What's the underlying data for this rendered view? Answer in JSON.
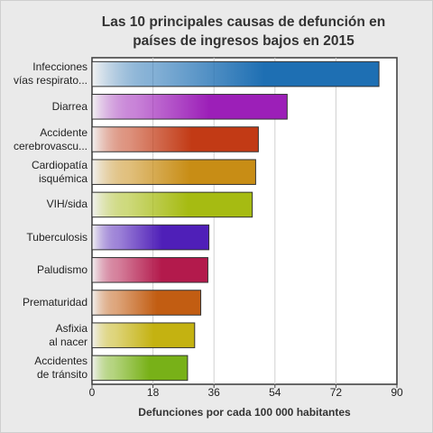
{
  "chart_data": {
    "type": "bar",
    "orientation": "horizontal",
    "title_lines": [
      "Las 10 principales causas de defunción en",
      "países de ingresos bajos en 2015"
    ],
    "xlabel": "Defunciones por cada 100 000 habitantes",
    "ylabel": "",
    "xlim": [
      0,
      90
    ],
    "x_ticks": [
      "0",
      "18",
      "36",
      "54",
      "72",
      "90"
    ],
    "grid": true,
    "categories": [
      [
        "Infecciones",
        "vías respirato..."
      ],
      [
        "Diarrea"
      ],
      [
        "Accidente",
        "cerebrovascu..."
      ],
      [
        "Cardiopatía",
        "isquémica"
      ],
      [
        "VIH/sida"
      ],
      [
        "Tuberculosis"
      ],
      [
        "Paludismo"
      ],
      [
        "Prematuridad"
      ],
      [
        "Asfixia",
        "al nacer"
      ],
      [
        "Accidentes",
        "de tránsito"
      ]
    ],
    "values": [
      84.7,
      57.6,
      49.1,
      48.3,
      47.3,
      34.5,
      34.2,
      32.1,
      30.3,
      28.2
    ],
    "colors": [
      "#1e6fb3",
      "#9c1fb8",
      "#c23a15",
      "#c88d15",
      "#a6bb12",
      "#4f1fb8",
      "#b31a4c",
      "#c25d12",
      "#c4b211",
      "#78b118"
    ]
  }
}
